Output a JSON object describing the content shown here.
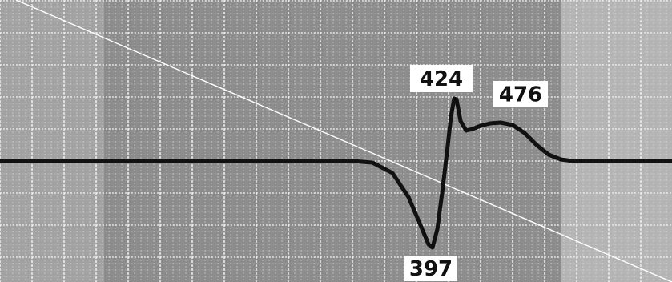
{
  "chart_data": {
    "type": "line",
    "title": "",
    "xlabel": "",
    "ylabel": "",
    "grid": true,
    "x": [
      0,
      200,
      300,
      440,
      465,
      490,
      510,
      525,
      535,
      540,
      546,
      552,
      558,
      563,
      567,
      570,
      575,
      582,
      590,
      600,
      612,
      625,
      640,
      655,
      670,
      685,
      700,
      715,
      730,
      760,
      839
    ],
    "series": [
      {
        "values": [
          0,
          0,
          0,
          0,
          -2,
          -15,
          -45,
          -80,
          -104,
          -108,
          -85,
          -40,
          10,
          55,
          78,
          77,
          50,
          38,
          40,
          44,
          47,
          48,
          45,
          35,
          20,
          8,
          2,
          0,
          0,
          0,
          0
        ]
      }
    ],
    "ylim": [
      -120,
      100
    ],
    "annotations": [
      {
        "text": "424",
        "x": 567,
        "y": 78
      },
      {
        "text": "476",
        "x": 640,
        "y": 45
      },
      {
        "text": "397",
        "x": 540,
        "y": -108
      }
    ],
    "colors": {
      "trace": "#111111",
      "grid_background": "#8c8c8c",
      "grid_line": "#f2f2f2",
      "diagonal": "#ffffff",
      "label_box": "#ffffff"
    }
  }
}
